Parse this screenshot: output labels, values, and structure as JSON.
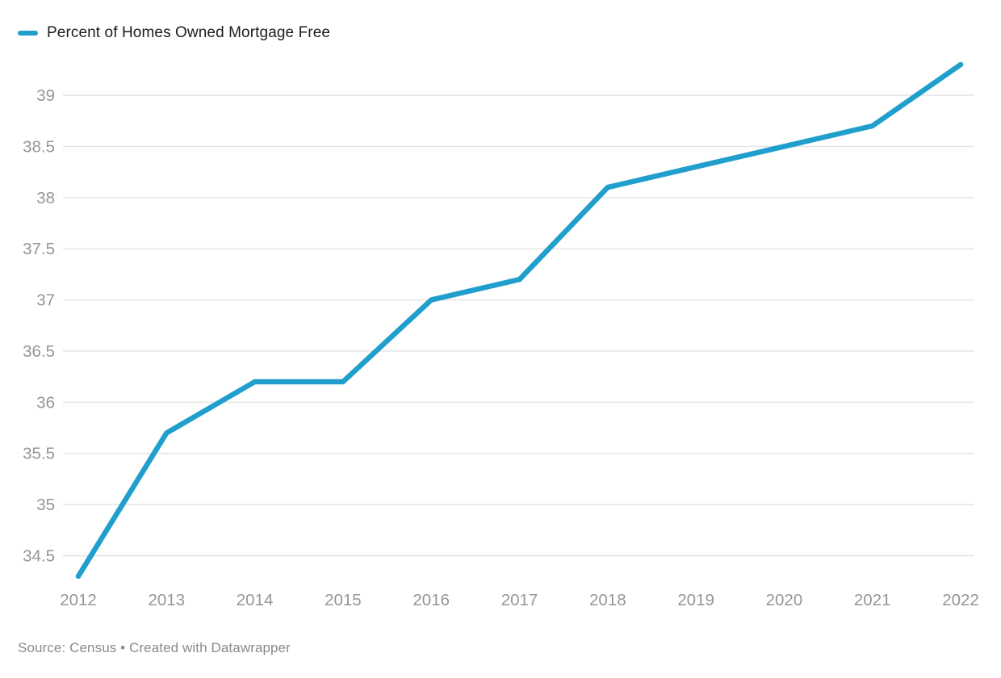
{
  "chart_data": {
    "type": "line",
    "title": "Percent of Homes Owned Mortgage Free",
    "series": [
      {
        "name": "Percent of Homes Owned Mortgage Free",
        "values": [
          34.3,
          35.7,
          36.2,
          36.2,
          37.0,
          37.2,
          38.1,
          38.3,
          38.5,
          38.7,
          39.3
        ]
      }
    ],
    "x": [
      "2012",
      "2013",
      "2014",
      "2015",
      "2016",
      "2017",
      "2018",
      "2019",
      "2020",
      "2021",
      "2022"
    ],
    "yticks": [
      34.5,
      35,
      35.5,
      36,
      36.5,
      37,
      37.5,
      38,
      38.5,
      39
    ],
    "ylim": [
      34.3,
      39.45
    ],
    "xlabel": "",
    "ylabel": "",
    "grid": true,
    "legend_position": "top-left",
    "line_color": "#219fcc",
    "grid_color": "#e3e3e3",
    "tick_color": "#969696",
    "source": "Source: Census • Created with Datawrapper"
  }
}
